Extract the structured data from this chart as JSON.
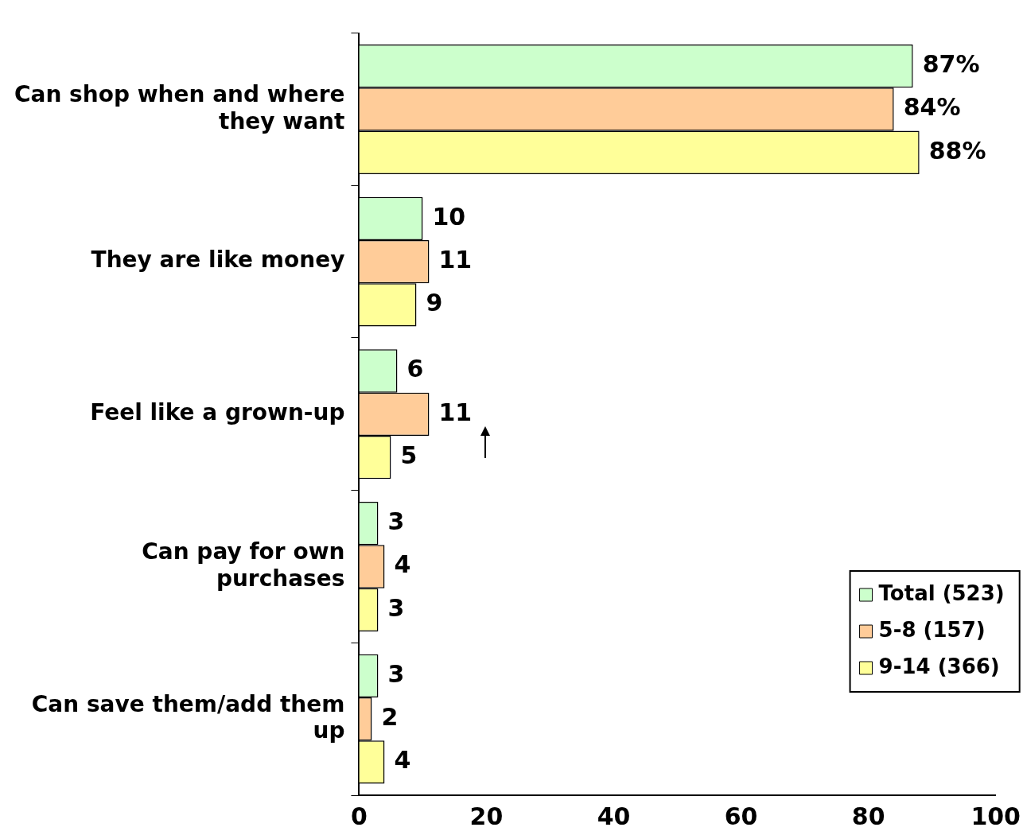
{
  "chart_data": {
    "type": "bar",
    "orientation": "horizontal",
    "categories": [
      "Can shop when and where they want",
      "They are like money",
      "Feel like a grown-up",
      "Can pay for own purchases",
      "Can save them/add them up"
    ],
    "series": [
      {
        "name": "Total (523)",
        "color": "#ccffcc",
        "values": [
          87,
          10,
          6,
          3,
          3
        ],
        "value_labels": [
          "87%",
          "10",
          "6",
          "3",
          "3"
        ]
      },
      {
        "name": "5-8 (157)",
        "color": "#ffcc99",
        "values": [
          84,
          11,
          11,
          4,
          2
        ],
        "value_labels": [
          "84%",
          "11",
          "11",
          "4",
          "2"
        ]
      },
      {
        "name": "9-14 (366)",
        "color": "#ffff99",
        "values": [
          88,
          9,
          5,
          3,
          4
        ],
        "value_labels": [
          "88%",
          "9",
          "5",
          "3",
          "4"
        ]
      }
    ],
    "xlim": [
      0,
      100
    ],
    "xticks": [
      0,
      20,
      40,
      60,
      80,
      100
    ],
    "grid": false,
    "legend": "bottom right"
  }
}
